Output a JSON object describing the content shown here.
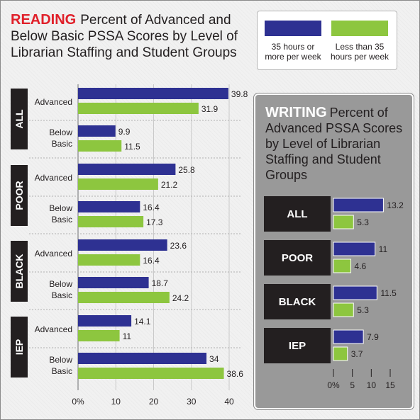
{
  "reading": {
    "word": "READING",
    "title": "Percent of Advanced and Below Basic PSSA Scores by Level of Librarian Staffing and Student Groups"
  },
  "legend": [
    {
      "line1": "35 hours or",
      "line2": "more per week",
      "color": "#2e3192"
    },
    {
      "line1": "Less than 35",
      "line2": "hours per week",
      "color": "#8dc63f"
    }
  ],
  "writing": {
    "word": "WRITING",
    "title": "Percent of Advanced PSSA Scores by Level of Librarian Staffing and Student Groups"
  },
  "colors": {
    "navy": "#2e3192",
    "green": "#8dc63f",
    "label_block": "#231f20",
    "panel": "#999999"
  },
  "chart_data": [
    {
      "type": "bar",
      "orientation": "horizontal",
      "title": "Percent of Advanced and Below Basic PSSA Scores by Level of Librarian Staffing and Student Groups",
      "groups": [
        {
          "name": "ALL",
          "rows": [
            {
              "label": [
                "Advanced"
              ],
              "values": [
                39.8,
                31.9
              ]
            },
            {
              "label": [
                "Below",
                "Basic"
              ],
              "values": [
                9.9,
                11.5
              ]
            }
          ]
        },
        {
          "name": "POOR",
          "rows": [
            {
              "label": [
                "Advanced"
              ],
              "values": [
                25.8,
                21.2
              ]
            },
            {
              "label": [
                "Below",
                "Basic"
              ],
              "values": [
                16.4,
                17.3
              ]
            }
          ]
        },
        {
          "name": "BLACK",
          "rows": [
            {
              "label": [
                "Advanced"
              ],
              "values": [
                23.6,
                16.4
              ]
            },
            {
              "label": [
                "Below",
                "Basic"
              ],
              "values": [
                18.7,
                24.2
              ]
            }
          ]
        },
        {
          "name": "IEP",
          "rows": [
            {
              "label": [
                "Advanced"
              ],
              "values": [
                14.1,
                11
              ]
            },
            {
              "label": [
                "Below",
                "Basic"
              ],
              "values": [
                34,
                38.6
              ]
            }
          ]
        }
      ],
      "series": [
        {
          "name": "35 hours or more per week"
        },
        {
          "name": "Less than 35 hours per week"
        }
      ],
      "xlim": [
        0,
        40
      ],
      "ticks": [
        "0%",
        "10",
        "20",
        "30",
        "40"
      ],
      "tick_values": [
        0,
        10,
        20,
        30,
        40
      ],
      "grid": true
    },
    {
      "type": "bar",
      "orientation": "horizontal",
      "title": "Percent of Advanced PSSA Scores by Level of Librarian Staffing and Student Groups",
      "groups": [
        {
          "name": "ALL",
          "values": [
            13.2,
            5.3
          ]
        },
        {
          "name": "POOR",
          "values": [
            11,
            4.6
          ]
        },
        {
          "name": "BLACK",
          "values": [
            11.5,
            5.3
          ]
        },
        {
          "name": "IEP",
          "values": [
            7.9,
            3.7
          ]
        }
      ],
      "series": [
        {
          "name": "35 hours or more per week"
        },
        {
          "name": "Less than 35 hours per week"
        }
      ],
      "xlim": [
        0,
        15
      ],
      "ticks": [
        "0%",
        "5",
        "10",
        "15"
      ],
      "tick_values": [
        0,
        5,
        10,
        15
      ]
    }
  ]
}
